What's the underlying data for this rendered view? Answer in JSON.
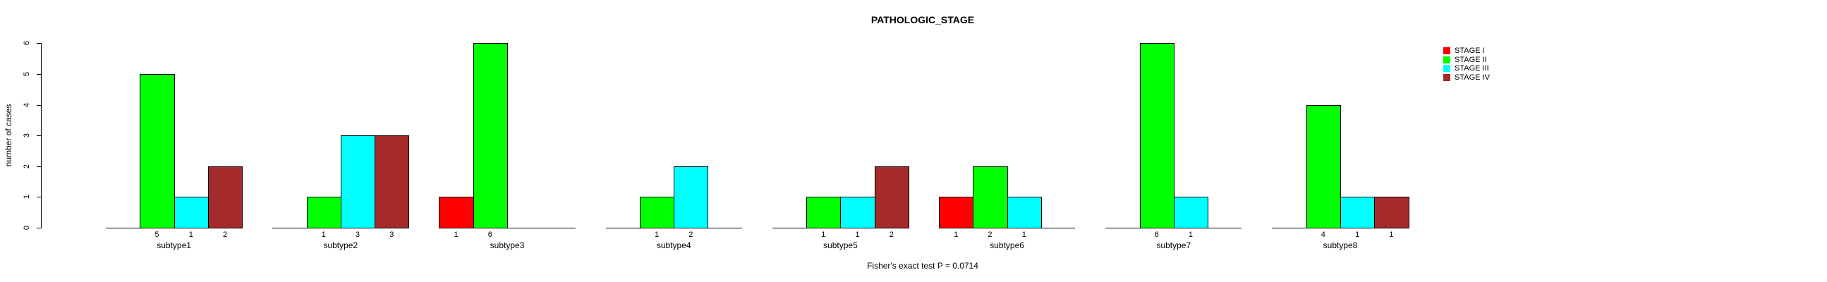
{
  "title": "PATHOLOGIC_STAGE",
  "caption": "Fisher's exact test P = 0.0714",
  "y_axis": {
    "label": "number of cases",
    "ticks": [
      "0",
      "1",
      "2",
      "3",
      "4",
      "5",
      "6"
    ]
  },
  "legend": {
    "items": [
      {
        "label": "STAGE I",
        "color": "#ff0000"
      },
      {
        "label": "STAGE II",
        "color": "#00ff00"
      },
      {
        "label": "STAGE III",
        "color": "#00ffff"
      },
      {
        "label": "STAGE IV",
        "color": "#a52a2a"
      }
    ]
  },
  "chart_data": {
    "type": "bar",
    "title": "PATHOLOGIC_STAGE",
    "xlabel": "",
    "ylabel": "number of cases",
    "ylim": [
      0,
      6
    ],
    "grid": false,
    "legend_position": "top-right",
    "series_names": [
      "STAGE I",
      "STAGE II",
      "STAGE III",
      "STAGE IV"
    ],
    "annotation": "Fisher's exact test P = 0.0714",
    "groups": [
      {
        "label": "subtype1",
        "bars": [
          {
            "stage": "STAGE II",
            "count": 5
          },
          {
            "stage": "STAGE III",
            "count": 1
          },
          {
            "stage": "STAGE IV",
            "count": 2
          }
        ]
      },
      {
        "label": "subtype2",
        "bars": [
          {
            "stage": "STAGE II",
            "count": 1
          },
          {
            "stage": "STAGE III",
            "count": 3
          },
          {
            "stage": "STAGE IV",
            "count": 3
          }
        ]
      },
      {
        "label": "subtype3",
        "bars": [
          {
            "stage": "STAGE I",
            "count": 1
          },
          {
            "stage": "STAGE II",
            "count": 6
          }
        ]
      },
      {
        "label": "subtype4",
        "bars": [
          {
            "stage": "STAGE II",
            "count": 1
          },
          {
            "stage": "STAGE III",
            "count": 2
          }
        ]
      },
      {
        "label": "subtype5",
        "bars": [
          {
            "stage": "STAGE II",
            "count": 1
          },
          {
            "stage": "STAGE III",
            "count": 1
          },
          {
            "stage": "STAGE IV",
            "count": 2
          }
        ]
      },
      {
        "label": "subtype6",
        "bars": [
          {
            "stage": "STAGE I",
            "count": 1
          },
          {
            "stage": "STAGE II",
            "count": 2
          },
          {
            "stage": "STAGE III",
            "count": 1
          }
        ]
      },
      {
        "label": "subtype7",
        "bars": [
          {
            "stage": "STAGE II",
            "count": 6
          },
          {
            "stage": "STAGE III",
            "count": 1
          }
        ]
      },
      {
        "label": "subtype8",
        "bars": [
          {
            "stage": "STAGE II",
            "count": 4
          },
          {
            "stage": "STAGE III",
            "count": 1
          },
          {
            "stage": "STAGE IV",
            "count": 1
          }
        ]
      }
    ]
  }
}
